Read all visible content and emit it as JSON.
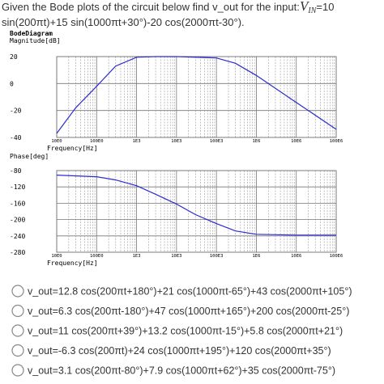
{
  "question": {
    "text": "Given the Bode plots of the circuit below find v_out for the input:",
    "symbol": "V",
    "subscript": "IN",
    "equals": "=10",
    "line2": "sin(200πt)+15 sin(1000πt+30°)-20 cos(2000πt-30°)."
  },
  "chart_data": [
    {
      "type": "line",
      "title": "BodeDiagram",
      "ylabel": "Magnitude[dB]",
      "xlabel": "Frequency[Hz]",
      "xscale": "log",
      "grid": true,
      "xlim": [
        10,
        100000000
      ],
      "ylim": [
        -40,
        20
      ],
      "xticks": [
        {
          "value": 10,
          "label": "10E0"
        },
        {
          "value": 100,
          "label": "100E0"
        },
        {
          "value": 1000,
          "label": "1E3"
        },
        {
          "value": 10000,
          "label": "10E3"
        },
        {
          "value": 100000,
          "label": "100E3"
        },
        {
          "value": 1000000,
          "label": "1E6"
        },
        {
          "value": 10000000,
          "label": "10E6"
        },
        {
          "value": 100000000,
          "label": "100E6"
        }
      ],
      "yticks": [
        20,
        0,
        -20,
        -40
      ],
      "x": [
        10,
        30,
        100,
        300,
        1000,
        3000,
        10000,
        100000,
        300000,
        1000000,
        10000000,
        100000000
      ],
      "series": [
        {
          "color": "#2b2bd0",
          "values": [
            -37,
            -18,
            -2,
            13,
            19.5,
            20,
            20,
            19,
            15,
            6,
            -14,
            -34
          ]
        }
      ]
    },
    {
      "type": "line",
      "ylabel": "Phase[deg]",
      "xlabel": "Frequency[Hz]",
      "xscale": "log",
      "grid": true,
      "xlim": [
        10,
        100000000
      ],
      "ylim": [
        -280,
        -80
      ],
      "xticks": [
        {
          "value": 10,
          "label": "10E0"
        },
        {
          "value": 100,
          "label": "100E0"
        },
        {
          "value": 1000,
          "label": "1E3"
        },
        {
          "value": 10000,
          "label": "10E3"
        },
        {
          "value": 100000,
          "label": "100E3"
        },
        {
          "value": 1000000,
          "label": "1E6"
        },
        {
          "value": 10000000,
          "label": "10E6"
        },
        {
          "value": 100000000,
          "label": "100E6"
        }
      ],
      "yticks": [
        -80,
        -120,
        -160,
        -200,
        -240,
        -280
      ],
      "x": [
        10,
        100,
        300,
        1000,
        3000,
        10000,
        30000,
        100000,
        300000,
        1000000,
        10000000,
        100000000
      ],
      "series": [
        {
          "color": "#2b2bd0",
          "values": [
            -91,
            -95,
            -103,
            -117,
            -138,
            -162,
            -188,
            -210,
            -228,
            -236,
            -238,
            -238
          ]
        }
      ]
    }
  ],
  "options": [
    "v_out=12.8 cos(200πt+180°)+21 cos(1000πt-65°)+43 cos(2000πt+105°)",
    "v_out=6.3 cos(200πt-180°)+47 cos(1000πt+165°)+200 cos(2000πt-25°)",
    "v_out=11 cos(200πt+39°)+13.2 cos(1000πt-15°)+5.8 cos(2000πt+21°)",
    "v_out=-6.3 cos(200πt)+24 cos(1000πt+195°)+120 cos(2000πt+35°)",
    "v_out=3.1 cos(200πt-80°)+7.9 cos(1000πt+62°)+35 cos(2000πt-75°)"
  ]
}
